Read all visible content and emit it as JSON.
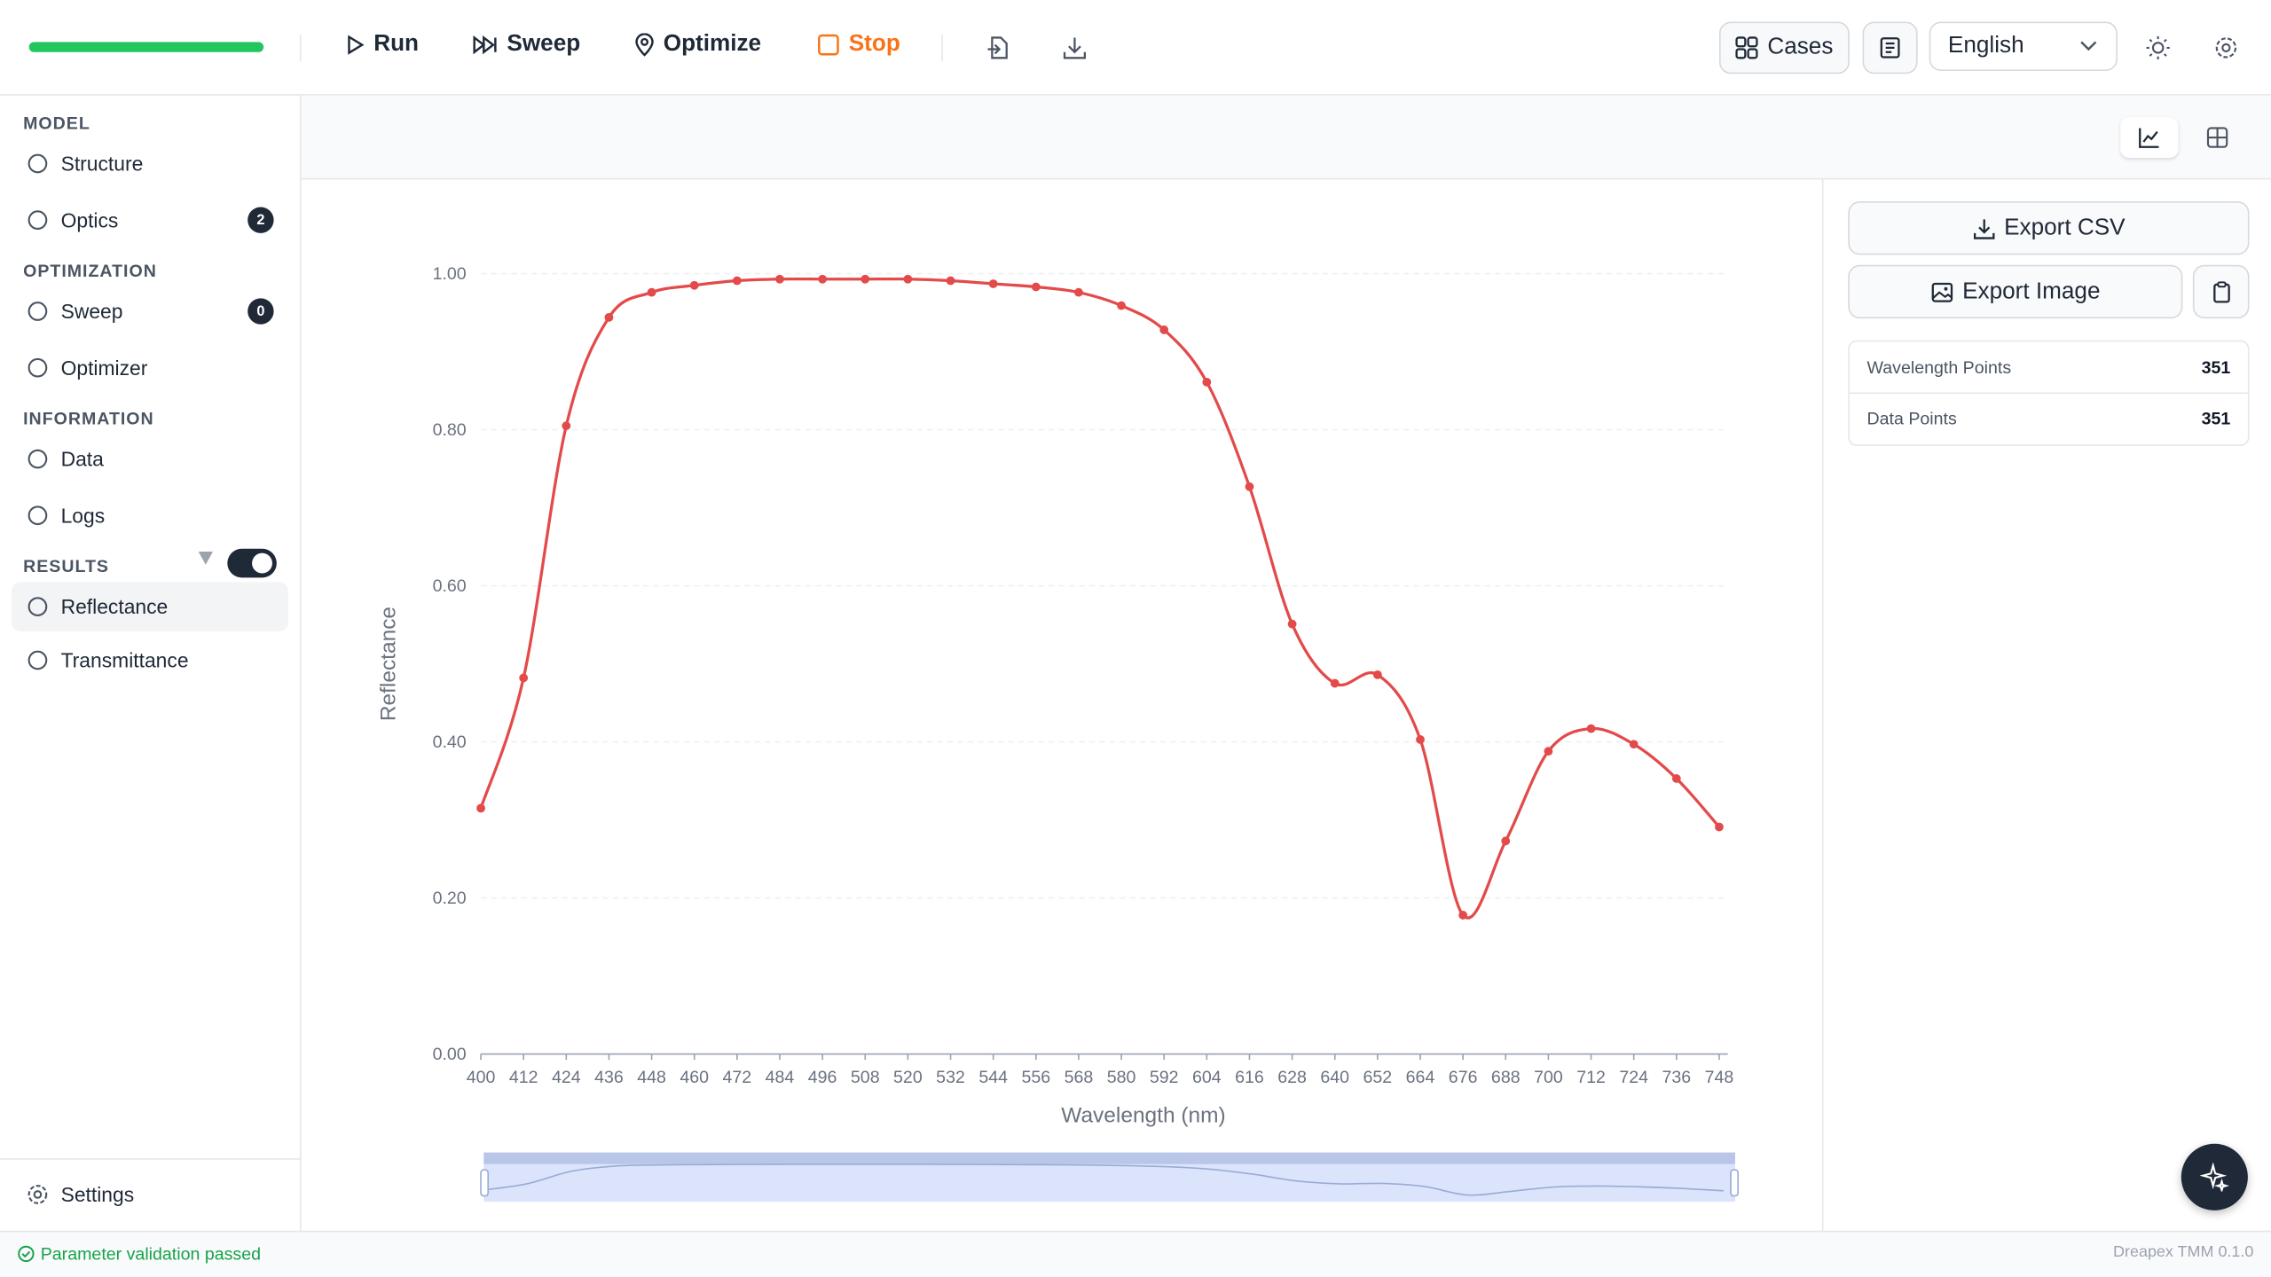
{
  "toolbar": {
    "run": "Run",
    "sweep": "Sweep",
    "optimize": "Optimize",
    "stop": "Stop",
    "cases": "Cases",
    "language": "English"
  },
  "sidebar": {
    "sections": [
      {
        "title": "MODEL",
        "items": [
          {
            "label": "Structure"
          },
          {
            "label": "Optics",
            "badge": 2
          }
        ]
      },
      {
        "title": "OPTIMIZATION",
        "items": [
          {
            "label": "Sweep",
            "badge": 0
          },
          {
            "label": "Optimizer"
          }
        ]
      },
      {
        "title": "INFORMATION",
        "items": [
          {
            "label": "Data"
          },
          {
            "label": "Logs"
          }
        ]
      },
      {
        "title": "RESULTS",
        "items": [
          {
            "label": "Reflectance"
          },
          {
            "label": "Transmittance"
          }
        ]
      }
    ],
    "settings": "Settings"
  },
  "chart_data": {
    "type": "line",
    "x_label": "Wavelength (nm)",
    "y_label": "Reflectance",
    "x": [
      400,
      412,
      424,
      436,
      448,
      460,
      472,
      484,
      496,
      508,
      520,
      532,
      544,
      556,
      568,
      580,
      592,
      604,
      616,
      628,
      640,
      652,
      664,
      676,
      688,
      700,
      712,
      724,
      736,
      748
    ],
    "series": [
      {
        "name": "Reflectance",
        "color": "#e34a4a",
        "values": [
          0.315,
          0.482,
          0.805,
          0.944,
          0.976,
          0.985,
          0.991,
          0.993,
          0.993,
          0.993,
          0.993,
          0.991,
          0.987,
          0.983,
          0.976,
          0.959,
          0.928,
          0.861,
          0.727,
          0.551,
          0.475,
          0.486,
          0.403,
          0.178,
          0.273,
          0.388,
          0.417,
          0.397,
          0.353,
          0.291
        ]
      }
    ],
    "xlim": [
      400,
      748
    ],
    "xticks": [
      400,
      412,
      424,
      436,
      448,
      460,
      472,
      484,
      496,
      508,
      520,
      532,
      544,
      556,
      568,
      580,
      592,
      604,
      616,
      628,
      640,
      652,
      664,
      676,
      688,
      700,
      712,
      724,
      736,
      748
    ],
    "ylim": [
      0,
      1
    ],
    "yticks": [
      {
        "value": 0,
        "label": "0.00"
      },
      {
        "value": 0.2,
        "label": "0.20"
      },
      {
        "value": 0.4,
        "label": "0.40"
      },
      {
        "value": 0.6,
        "label": "0.60"
      },
      {
        "value": 0.8,
        "label": "0.80"
      },
      {
        "value": 1,
        "label": "1.00"
      }
    ],
    "grid": true
  },
  "panel": {
    "export_csv": "Export CSV",
    "export_image": "Export Image",
    "stats": [
      {
        "label": "Wavelength Points",
        "value": 351
      },
      {
        "label": "Data Points",
        "value": 351
      }
    ]
  },
  "status": {
    "message": "Parameter validation passed",
    "version": "Dreapex TMM 0.1.0"
  }
}
